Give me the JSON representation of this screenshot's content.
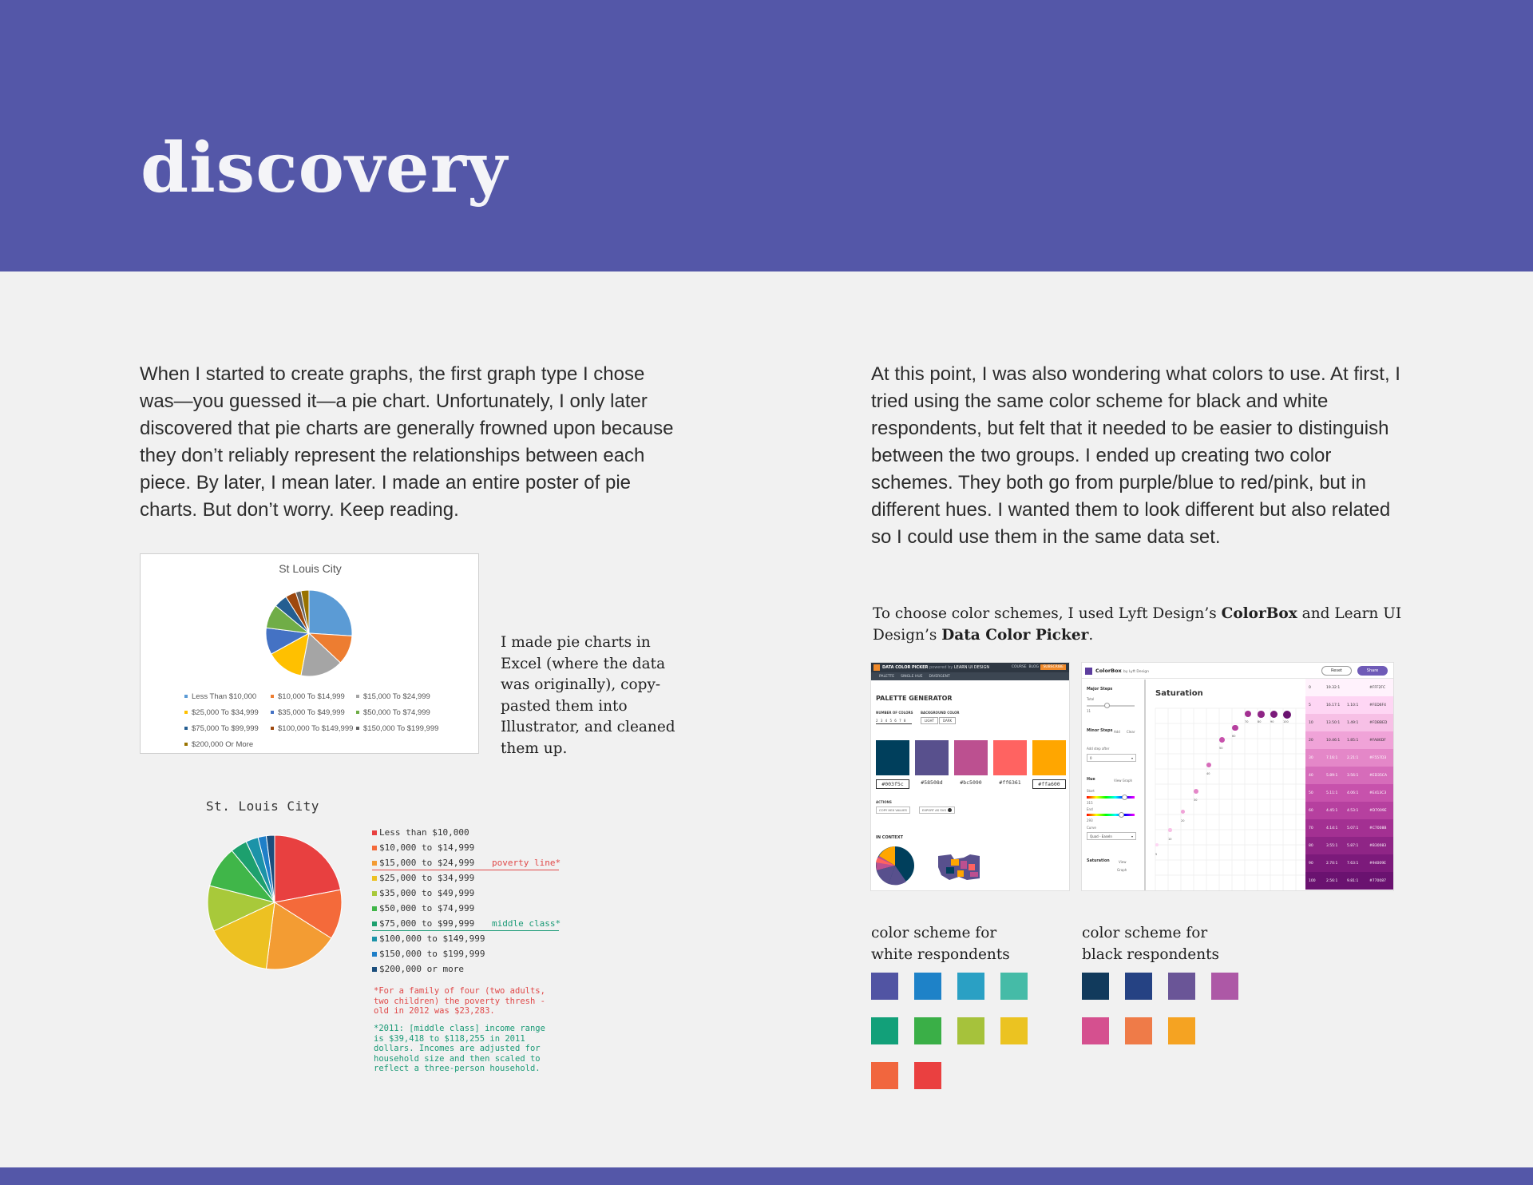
{
  "header": {
    "title": "discovery",
    "color": "#5457a8"
  },
  "left_paragraph": "When I started to create graphs, the first graph type I chose was—you guessed it—a pie chart. Unfortunately, I only later discovered that pie charts are generally frowned upon because they don’t reliably represent the relationships between each piece. By later, I mean later. I made an entire poster of pie charts. But don’t worry. Keep reading.",
  "right_paragraph": "At this point, I was also wondering what colors to use. At first, I tried using the same color scheme for black and white respondents, but felt that it needed to be easier to distinguish between the two groups. I ended up creating two color schemes. They both go from purple/blue to red/pink, but in different hues. I wanted them to look different but also related so I could use them in the same data set.",
  "excel_note": "I made pie charts in Excel (where the data was originally), copy-pasted them into Illustrator, and cleaned them up.",
  "tools_note": {
    "pre": "To choose color schemes, I used Lyft Design’s ",
    "colorbox": "ColorBox",
    "mid": " and Learn UI Design’s ",
    "picker": "Data Color Picker",
    "end": "."
  },
  "excel_chart": {
    "title": "St Louis City",
    "legend": [
      {
        "label": "Less Than $10,000",
        "color": "#5b9bd5"
      },
      {
        "label": "$10,000 To $14,999",
        "color": "#ed7d31"
      },
      {
        "label": "$15,000 To $24,999",
        "color": "#a5a5a5"
      },
      {
        "label": "$25,000 To $34,999",
        "color": "#ffc000"
      },
      {
        "label": "$35,000 To $49,999",
        "color": "#4472c4"
      },
      {
        "label": "$50,000 To $74,999",
        "color": "#70ad47"
      },
      {
        "label": "$75,000 To $99,999",
        "color": "#255e91"
      },
      {
        "label": "$100,000 To $149,999",
        "color": "#9e480e"
      },
      {
        "label": "$150,000 To $199,999",
        "color": "#636363"
      },
      {
        "label": "$200,000 Or More",
        "color": "#997300"
      }
    ],
    "slices": [
      26,
      11,
      16,
      14,
      10,
      9,
      5,
      4,
      2,
      3
    ]
  },
  "illustrator_chart": {
    "title": "St. Louis City",
    "legend": [
      {
        "label": "Less than $10,000",
        "color": "#e84040",
        "tag": "",
        "line": ""
      },
      {
        "label": "$10,000 to $14,999",
        "color": "#f46a3a",
        "tag": "",
        "line": ""
      },
      {
        "label": "$15,000 to $24,999",
        "color": "#f39c33",
        "tag": "poverty line*",
        "line": "#e04848"
      },
      {
        "label": "$25,000 to $34,999",
        "color": "#edc122",
        "tag": "",
        "line": ""
      },
      {
        "label": "$35,000 to $49,999",
        "color": "#a8c93a",
        "tag": "",
        "line": ""
      },
      {
        "label": "$50,000 to $74,999",
        "color": "#40b649",
        "tag": "",
        "line": ""
      },
      {
        "label": "$75,000 to $99,999",
        "color": "#1da06e",
        "tag": "middle class*",
        "line": "#1a9a76"
      },
      {
        "label": "$100,000 to $149,999",
        "color": "#1c93a8",
        "tag": "",
        "line": ""
      },
      {
        "label": "$150,000 to $199,999",
        "color": "#1f7fc8",
        "tag": "",
        "line": ""
      },
      {
        "label": "$200,000 or more",
        "color": "#1b4e7c",
        "tag": "",
        "line": ""
      }
    ],
    "slices": [
      22,
      12,
      18,
      16,
      11,
      10,
      4,
      3,
      2,
      2
    ],
    "footnote_poverty": "*For a family of four (two adults,\ntwo children) the poverty thresh -\nold in 2012 was $23,283.",
    "footnote_middle": "*2011: [middle class] income range\nis $39,418 to $118,255 in 2011\ndollars. Incomes are adjusted for\nhousehold size and then scaled to\nreflect a three-person household.",
    "poverty_color": "#e04848",
    "middle_color": "#1a9a76"
  },
  "data_color_picker": {
    "topbar": "DATA COLOR PICKER",
    "powered": "powered by",
    "brand": "LEARN UI DESIGN",
    "nav": [
      "COURSE",
      "BLOG"
    ],
    "subscribe": "SUBSCRIBE",
    "tabs": [
      "PALETTE",
      "SINGLE HUE",
      "DIVERGENT"
    ],
    "heading": "PALETTE GENERATOR",
    "num_colors_label": "NUMBER OF COLORS",
    "num_colors": "2 3 4 5 6 7 8",
    "bg_label": "BACKGROUND COLOR",
    "bg_light": "LIGHT",
    "bg_dark": "DARK",
    "swatches": [
      {
        "hex": "#003f5c",
        "color": "#003f5c"
      },
      {
        "hex": "#58508d",
        "color": "#58508d"
      },
      {
        "hex": "#bc5090",
        "color": "#bc5090"
      },
      {
        "hex": "#ff6361",
        "color": "#ff6361"
      },
      {
        "hex": "#ffa600",
        "color": "#ffa600"
      }
    ],
    "actions_label": "ACTIONS",
    "copy_hex": "COPY HEX VALUES",
    "export_svg": "EXPORT AS SVG",
    "in_context": "IN CONTEXT"
  },
  "colorbox": {
    "name": "ColorBox",
    "by": "by Lyft Design",
    "reset": "Reset",
    "share": "Share",
    "major_steps": "Major Steps",
    "total": "Total",
    "total_val": "11",
    "minor_steps": "Minor Steps",
    "add": "Add",
    "clear": "Clear",
    "add_step_after": "Add step after",
    "step_val": "0",
    "hue": "Hue",
    "view_graph": "View Graph",
    "start": "Start",
    "start_val": "315",
    "end": "End",
    "end_val": "293",
    "curve": "Curve",
    "curve_val": "Quad - EaseIn",
    "saturation": "Saturation",
    "view": "View",
    "graph": "Graph",
    "main_title": "Saturation",
    "dots": [
      "5",
      "10",
      "20",
      "30",
      "40",
      "50",
      "60",
      "70",
      "80",
      "90",
      "100"
    ],
    "dot_values": [
      "5",
      "16",
      "29",
      "44",
      "63",
      "81",
      "90",
      "100",
      "100",
      "100",
      "100"
    ],
    "table": [
      {
        "step": "0",
        "contrast": "19.32:1",
        "ratio": "",
        "hex": "#FFF2FC",
        "color": "#fff2fc"
      },
      {
        "step": "5",
        "contrast": "16.17:1",
        "ratio": "1.10:1",
        "hex": "#FED6F4",
        "color": "#fed6f4"
      },
      {
        "step": "10",
        "contrast": "13.50:1",
        "ratio": "1.49:1",
        "hex": "#FDBBED",
        "color": "#f7c0e6"
      },
      {
        "step": "20",
        "contrast": "10.46:1",
        "ratio": "1.85:1",
        "hex": "#FA86DF",
        "color": "#f0a3d8"
      },
      {
        "step": "30",
        "contrast": "7.16:1",
        "ratio": "2.21:1",
        "hex": "#F557D3",
        "color": "#e487c8"
      },
      {
        "step": "40",
        "contrast": "5.89:1",
        "ratio": "3.56:1",
        "hex": "#ED35CA",
        "color": "#d66cba"
      },
      {
        "step": "50",
        "contrast": "5.11:1",
        "ratio": "4.06:1",
        "hex": "#E413C3",
        "color": "#c752ac"
      },
      {
        "step": "60",
        "contrast": "4.45:1",
        "ratio": "4.53:1",
        "hex": "#D7009E",
        "color": "#b6409f"
      },
      {
        "step": "70",
        "contrast": "4.14:1",
        "ratio": "5.07:1",
        "hex": "#C7008B",
        "color": "#a33092"
      },
      {
        "step": "80",
        "contrast": "3.55:1",
        "ratio": "5.87:1",
        "hex": "#B30083",
        "color": "#8f2586"
      },
      {
        "step": "90",
        "contrast": "2.70:1",
        "ratio": "7.63:1",
        "hex": "#94009E",
        "color": "#7c1a7b"
      },
      {
        "step": "100",
        "contrast": "2.56:1",
        "ratio": "9.81:1",
        "hex": "#770087",
        "color": "#6a1270"
      }
    ]
  },
  "schemes": {
    "white_label": "color scheme for\nwhite respondents",
    "black_label": "color scheme for\nblack respondents",
    "white": [
      "#5154a3",
      "#1e82c8",
      "#2aa0c4",
      "#45bba7",
      "#12a079",
      "#3aaf47",
      "#a6c23b",
      "#ebc321",
      "#f1663e",
      "#ea4040"
    ],
    "black": [
      "#113a5c",
      "#254283",
      "#6a5597",
      "#ad58a6",
      "#d5508f",
      "#ef7b48",
      "#f5a322"
    ]
  }
}
